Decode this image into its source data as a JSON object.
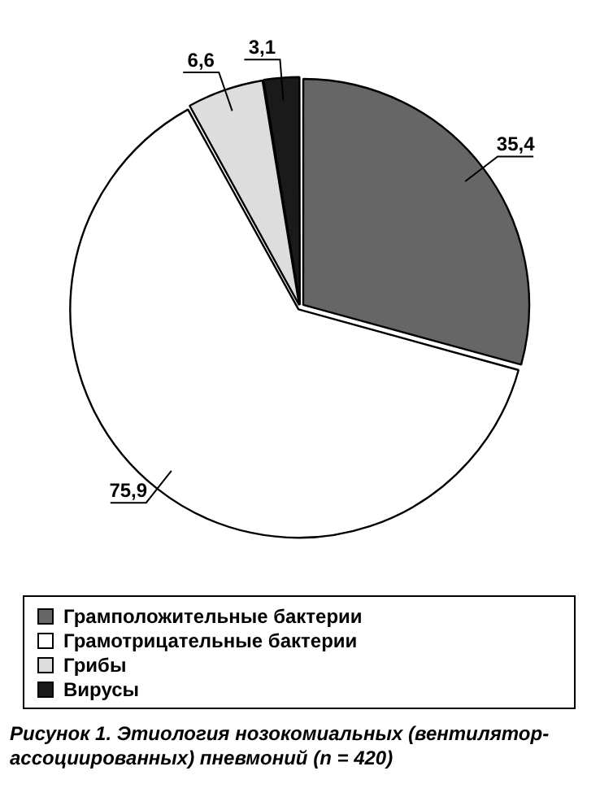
{
  "chart_data": {
    "type": "pie",
    "categories": [
      "Грамположительные бактерии",
      "Грамотрицательные бактерии",
      "Грибы",
      "Вирусы"
    ],
    "values": [
      35.4,
      75.9,
      6.6,
      3.1
    ],
    "value_labels": [
      "35,4",
      "75,9",
      "6,6",
      "3,1"
    ],
    "colors": [
      "#666666",
      "#ffffff",
      "#dddddd",
      "#1a1a1a"
    ],
    "legend": "bottom",
    "annotations": [
      "Рисунок 1. Этиология нозокомиальных (вентилятор-ассоциированных) пневмоний (n = 420)"
    ]
  }
}
